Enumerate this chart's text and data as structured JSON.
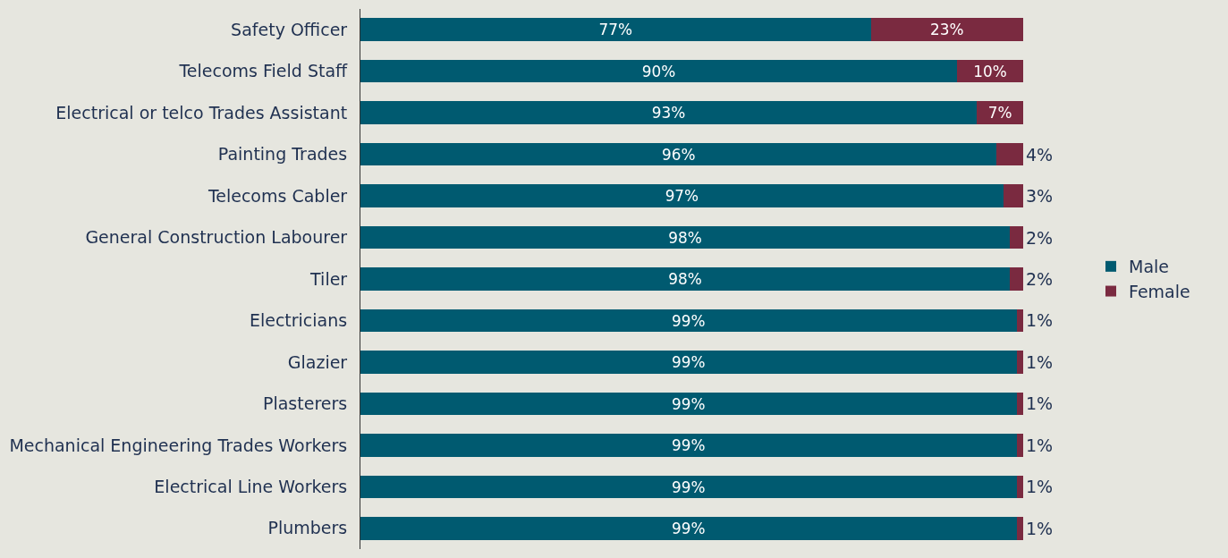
{
  "chart_data": {
    "type": "bar",
    "orientation": "horizontal",
    "stacked": true,
    "categories": [
      "Safety Officer",
      "Telecoms Field Staff",
      "Electrical or telco Trades Assistant",
      "Painting Trades",
      "Telecoms Cabler",
      "General Construction Labourer",
      "Tiler",
      "Electricians",
      "Glazier",
      "Plasterers",
      "Mechanical Engineering Trades Workers",
      "Electrical Line Workers",
      "Plumbers"
    ],
    "series": [
      {
        "name": "Male",
        "color": "#005a70",
        "values": [
          77,
          90,
          93,
          96,
          97,
          98,
          98,
          99,
          99,
          99,
          99,
          99,
          99
        ],
        "value_labels": [
          "77%",
          "90%",
          "93%",
          "96%",
          "97%",
          "98%",
          "98%",
          "99%",
          "99%",
          "99%",
          "99%",
          "99%",
          "99%"
        ]
      },
      {
        "name": "Female",
        "color": "#7a2a40",
        "values": [
          23,
          10,
          7,
          4,
          3,
          2,
          2,
          1,
          1,
          1,
          1,
          1,
          1
        ],
        "value_labels": [
          "23%",
          "10%",
          "7%",
          "4%",
          "3%",
          "2%",
          "2%",
          "1%",
          "1%",
          "1%",
          "1%",
          "1%",
          "1%"
        ]
      }
    ],
    "tick_labels": "y",
    "legend": "right",
    "grid": false
  }
}
